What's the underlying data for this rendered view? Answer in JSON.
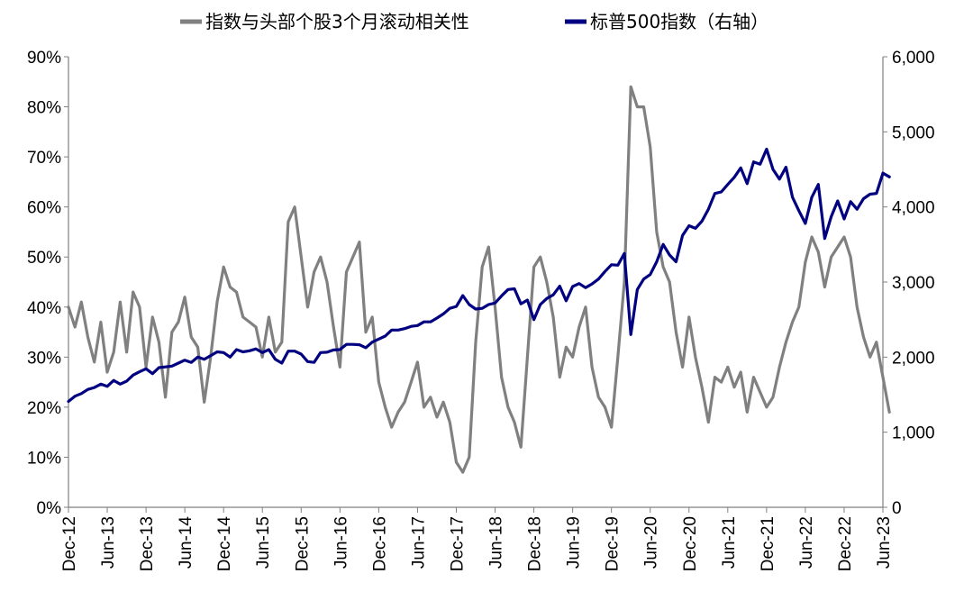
{
  "chart_data": {
    "type": "line",
    "title": "",
    "legend": {
      "placement": "top",
      "entries": [
        {
          "name": "指数与头部个股3个月滚动相关性",
          "color": "#808080"
        },
        {
          "name": "标普500指数（右轴）",
          "color": "#000080"
        }
      ]
    },
    "x_tick_labels": [
      "Dec-12",
      "Jun-13",
      "Dec-13",
      "Jun-14",
      "Dec-14",
      "Jun-15",
      "Dec-15",
      "Jun-16",
      "Dec-16",
      "Jun-17",
      "Dec-17",
      "Jun-18",
      "Dec-18",
      "Jun-19",
      "Dec-19",
      "Jun-20",
      "Dec-20",
      "Jun-21",
      "Dec-21",
      "Jun-22",
      "Dec-22",
      "Jun-23"
    ],
    "y_left": {
      "range": [
        0,
        90
      ],
      "ticks": [
        "0%",
        "10%",
        "20%",
        "30%",
        "40%",
        "50%",
        "60%",
        "70%",
        "80%",
        "90%"
      ]
    },
    "y_right": {
      "range": [
        0,
        6000
      ],
      "ticks": [
        "0",
        "1,000",
        "2,000",
        "3,000",
        "4,000",
        "5,000",
        "6,000"
      ]
    },
    "grid": false,
    "series": [
      {
        "name": "指数与头部个股3个月滚动相关性",
        "axis": "left",
        "color": "#808080",
        "points": [
          [
            "2012-12",
            40
          ],
          [
            "2013-01",
            36
          ],
          [
            "2013-02",
            41
          ],
          [
            "2013-03",
            34
          ],
          [
            "2013-04",
            29
          ],
          [
            "2013-05",
            37
          ],
          [
            "2013-06",
            27
          ],
          [
            "2013-07",
            31
          ],
          [
            "2013-08",
            41
          ],
          [
            "2013-09",
            31
          ],
          [
            "2013-10",
            43
          ],
          [
            "2013-11",
            40
          ],
          [
            "2013-12",
            28
          ],
          [
            "2014-01",
            38
          ],
          [
            "2014-02",
            33
          ],
          [
            "2014-03",
            22
          ],
          [
            "2014-04",
            35
          ],
          [
            "2014-05",
            37
          ],
          [
            "2014-06",
            42
          ],
          [
            "2014-07",
            34
          ],
          [
            "2014-08",
            32
          ],
          [
            "2014-09",
            21
          ],
          [
            "2014-10",
            30
          ],
          [
            "2014-11",
            41
          ],
          [
            "2014-12",
            48
          ],
          [
            "2015-01",
            44
          ],
          [
            "2015-02",
            43
          ],
          [
            "2015-03",
            38
          ],
          [
            "2015-04",
            37
          ],
          [
            "2015-05",
            36
          ],
          [
            "2015-06",
            30
          ],
          [
            "2015-07",
            38
          ],
          [
            "2015-08",
            31
          ],
          [
            "2015-09",
            33
          ],
          [
            "2015-10",
            57
          ],
          [
            "2015-11",
            60
          ],
          [
            "2015-12",
            50
          ],
          [
            "2016-01",
            40
          ],
          [
            "2016-02",
            47
          ],
          [
            "2016-03",
            50
          ],
          [
            "2016-04",
            45
          ],
          [
            "2016-05",
            36
          ],
          [
            "2016-06",
            28
          ],
          [
            "2016-07",
            47
          ],
          [
            "2016-08",
            50
          ],
          [
            "2016-09",
            53
          ],
          [
            "2016-10",
            35
          ],
          [
            "2016-11",
            38
          ],
          [
            "2016-12",
            25
          ],
          [
            "2017-01",
            20
          ],
          [
            "2017-02",
            16
          ],
          [
            "2017-03",
            19
          ],
          [
            "2017-04",
            21
          ],
          [
            "2017-05",
            25
          ],
          [
            "2017-06",
            29
          ],
          [
            "2017-07",
            20
          ],
          [
            "2017-08",
            22
          ],
          [
            "2017-09",
            18
          ],
          [
            "2017-10",
            21
          ],
          [
            "2017-11",
            17
          ],
          [
            "2017-12",
            9
          ],
          [
            "2018-01",
            7
          ],
          [
            "2018-02",
            10
          ],
          [
            "2018-03",
            33
          ],
          [
            "2018-04",
            48
          ],
          [
            "2018-05",
            52
          ],
          [
            "2018-06",
            40
          ],
          [
            "2018-07",
            26
          ],
          [
            "2018-08",
            20
          ],
          [
            "2018-09",
            17
          ],
          [
            "2018-10",
            12
          ],
          [
            "2018-11",
            30
          ],
          [
            "2018-12",
            48
          ],
          [
            "2019-01",
            50
          ],
          [
            "2019-02",
            45
          ],
          [
            "2019-03",
            38
          ],
          [
            "2019-04",
            26
          ],
          [
            "2019-05",
            32
          ],
          [
            "2019-06",
            30
          ],
          [
            "2019-07",
            36
          ],
          [
            "2019-08",
            40
          ],
          [
            "2019-09",
            28
          ],
          [
            "2019-10",
            22
          ],
          [
            "2019-11",
            20
          ],
          [
            "2019-12",
            16
          ],
          [
            "2020-01",
            30
          ],
          [
            "2020-02",
            45
          ],
          [
            "2020-03",
            84
          ],
          [
            "2020-04",
            80
          ],
          [
            "2020-05",
            80
          ],
          [
            "2020-06",
            72
          ],
          [
            "2020-07",
            55
          ],
          [
            "2020-08",
            48
          ],
          [
            "2020-09",
            45
          ],
          [
            "2020-10",
            35
          ],
          [
            "2020-11",
            28
          ],
          [
            "2020-12",
            38
          ],
          [
            "2021-01",
            30
          ],
          [
            "2021-02",
            24
          ],
          [
            "2021-03",
            17
          ],
          [
            "2021-04",
            26
          ],
          [
            "2021-05",
            25
          ],
          [
            "2021-06",
            28
          ],
          [
            "2021-07",
            24
          ],
          [
            "2021-08",
            27
          ],
          [
            "2021-09",
            19
          ],
          [
            "2021-10",
            26
          ],
          [
            "2021-11",
            23
          ],
          [
            "2021-12",
            20
          ],
          [
            "2022-01",
            22
          ],
          [
            "2022-02",
            28
          ],
          [
            "2022-03",
            33
          ],
          [
            "2022-04",
            37
          ],
          [
            "2022-05",
            40
          ],
          [
            "2022-06",
            49
          ],
          [
            "2022-07",
            54
          ],
          [
            "2022-08",
            51
          ],
          [
            "2022-09",
            44
          ],
          [
            "2022-10",
            50
          ],
          [
            "2022-11",
            52
          ],
          [
            "2022-12",
            54
          ],
          [
            "2023-01",
            50
          ],
          [
            "2023-02",
            40
          ],
          [
            "2023-03",
            34
          ],
          [
            "2023-04",
            30
          ],
          [
            "2023-05",
            33
          ],
          [
            "2023-06",
            26
          ],
          [
            "2023-07",
            19
          ]
        ]
      },
      {
        "name": "标普500指数（右轴）",
        "axis": "right",
        "color": "#000080",
        "points": [
          [
            "2012-12",
            1410
          ],
          [
            "2013-01",
            1480
          ],
          [
            "2013-02",
            1515
          ],
          [
            "2013-03",
            1570
          ],
          [
            "2013-04",
            1595
          ],
          [
            "2013-05",
            1640
          ],
          [
            "2013-06",
            1610
          ],
          [
            "2013-07",
            1690
          ],
          [
            "2013-08",
            1640
          ],
          [
            "2013-09",
            1680
          ],
          [
            "2013-10",
            1760
          ],
          [
            "2013-11",
            1805
          ],
          [
            "2013-12",
            1845
          ],
          [
            "2014-01",
            1780
          ],
          [
            "2014-02",
            1860
          ],
          [
            "2014-03",
            1870
          ],
          [
            "2014-04",
            1880
          ],
          [
            "2014-05",
            1920
          ],
          [
            "2014-06",
            1960
          ],
          [
            "2014-07",
            1930
          ],
          [
            "2014-08",
            2000
          ],
          [
            "2014-09",
            1970
          ],
          [
            "2014-10",
            2020
          ],
          [
            "2014-11",
            2070
          ],
          [
            "2014-12",
            2060
          ],
          [
            "2015-01",
            2000
          ],
          [
            "2015-02",
            2100
          ],
          [
            "2015-03",
            2070
          ],
          [
            "2015-04",
            2085
          ],
          [
            "2015-05",
            2110
          ],
          [
            "2015-06",
            2060
          ],
          [
            "2015-07",
            2100
          ],
          [
            "2015-08",
            1970
          ],
          [
            "2015-09",
            1920
          ],
          [
            "2015-10",
            2080
          ],
          [
            "2015-11",
            2080
          ],
          [
            "2015-12",
            2040
          ],
          [
            "2016-01",
            1940
          ],
          [
            "2016-02",
            1930
          ],
          [
            "2016-03",
            2060
          ],
          [
            "2016-04",
            2065
          ],
          [
            "2016-05",
            2095
          ],
          [
            "2016-06",
            2100
          ],
          [
            "2016-07",
            2170
          ],
          [
            "2016-08",
            2170
          ],
          [
            "2016-09",
            2165
          ],
          [
            "2016-10",
            2125
          ],
          [
            "2016-11",
            2200
          ],
          [
            "2016-12",
            2240
          ],
          [
            "2017-01",
            2280
          ],
          [
            "2017-02",
            2360
          ],
          [
            "2017-03",
            2360
          ],
          [
            "2017-04",
            2380
          ],
          [
            "2017-05",
            2410
          ],
          [
            "2017-06",
            2420
          ],
          [
            "2017-07",
            2470
          ],
          [
            "2017-08",
            2470
          ],
          [
            "2017-09",
            2520
          ],
          [
            "2017-10",
            2575
          ],
          [
            "2017-11",
            2650
          ],
          [
            "2017-12",
            2675
          ],
          [
            "2018-01",
            2820
          ],
          [
            "2018-02",
            2700
          ],
          [
            "2018-03",
            2640
          ],
          [
            "2018-04",
            2650
          ],
          [
            "2018-05",
            2700
          ],
          [
            "2018-06",
            2720
          ],
          [
            "2018-07",
            2815
          ],
          [
            "2018-08",
            2900
          ],
          [
            "2018-09",
            2910
          ],
          [
            "2018-10",
            2710
          ],
          [
            "2018-11",
            2760
          ],
          [
            "2018-12",
            2500
          ],
          [
            "2019-01",
            2700
          ],
          [
            "2019-02",
            2780
          ],
          [
            "2019-03",
            2830
          ],
          [
            "2019-04",
            2945
          ],
          [
            "2019-05",
            2750
          ],
          [
            "2019-06",
            2940
          ],
          [
            "2019-07",
            2980
          ],
          [
            "2019-08",
            2925
          ],
          [
            "2019-09",
            2975
          ],
          [
            "2019-10",
            3040
          ],
          [
            "2019-11",
            3140
          ],
          [
            "2019-12",
            3230
          ],
          [
            "2020-01",
            3225
          ],
          [
            "2020-02",
            3380
          ],
          [
            "2020-03",
            2300
          ],
          [
            "2020-04",
            2900
          ],
          [
            "2020-05",
            3040
          ],
          [
            "2020-06",
            3100
          ],
          [
            "2020-07",
            3270
          ],
          [
            "2020-08",
            3500
          ],
          [
            "2020-09",
            3360
          ],
          [
            "2020-10",
            3270
          ],
          [
            "2020-11",
            3620
          ],
          [
            "2020-12",
            3750
          ],
          [
            "2021-01",
            3715
          ],
          [
            "2021-02",
            3810
          ],
          [
            "2021-03",
            3970
          ],
          [
            "2021-04",
            4180
          ],
          [
            "2021-05",
            4200
          ],
          [
            "2021-06",
            4300
          ],
          [
            "2021-07",
            4395
          ],
          [
            "2021-08",
            4520
          ],
          [
            "2021-09",
            4310
          ],
          [
            "2021-10",
            4600
          ],
          [
            "2021-11",
            4570
          ],
          [
            "2021-12",
            4770
          ],
          [
            "2022-01",
            4500
          ],
          [
            "2022-02",
            4370
          ],
          [
            "2022-03",
            4530
          ],
          [
            "2022-04",
            4130
          ],
          [
            "2022-05",
            3950
          ],
          [
            "2022-06",
            3780
          ],
          [
            "2022-07",
            4130
          ],
          [
            "2022-08",
            4300
          ],
          [
            "2022-09",
            3580
          ],
          [
            "2022-10",
            3870
          ],
          [
            "2022-11",
            4080
          ],
          [
            "2022-12",
            3840
          ],
          [
            "2023-01",
            4070
          ],
          [
            "2023-02",
            3970
          ],
          [
            "2023-03",
            4110
          ],
          [
            "2023-04",
            4170
          ],
          [
            "2023-05",
            4180
          ],
          [
            "2023-06",
            4450
          ],
          [
            "2023-07",
            4400
          ]
        ]
      }
    ]
  }
}
